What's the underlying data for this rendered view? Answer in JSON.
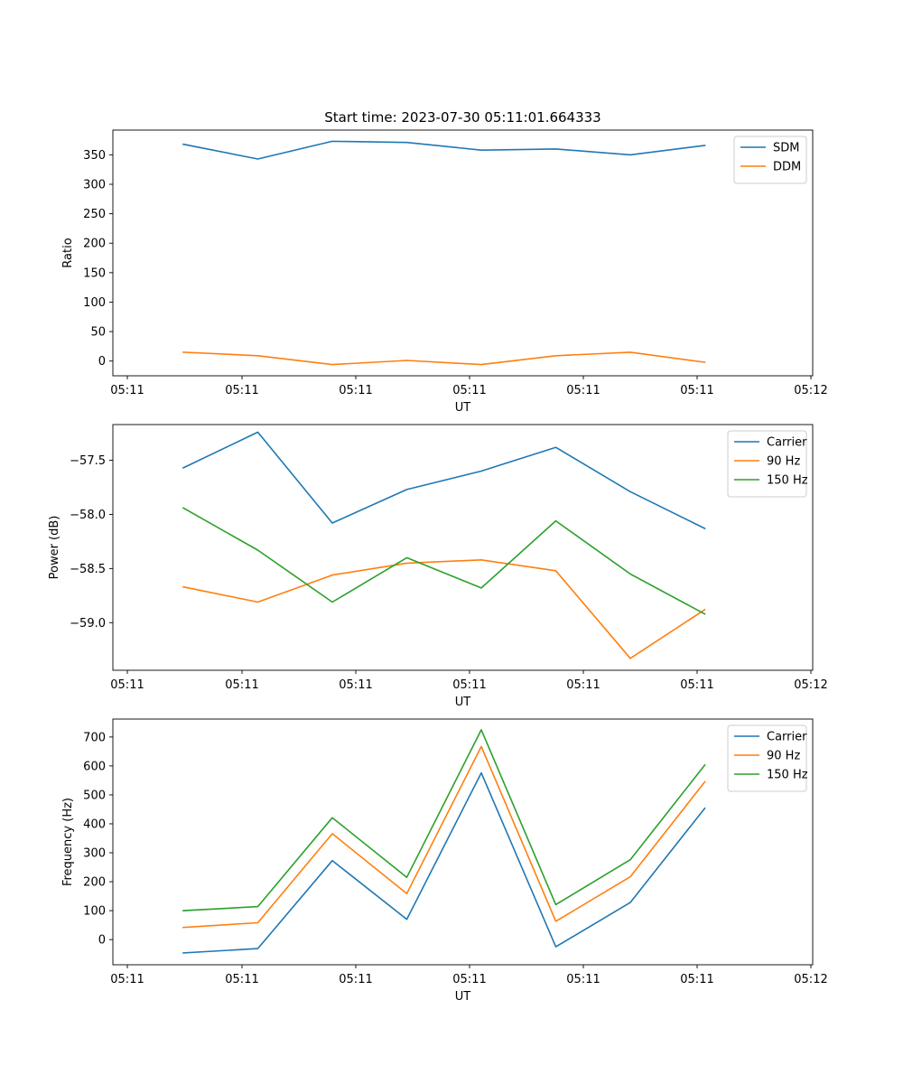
{
  "chart_data": [
    {
      "type": "line",
      "title": "Start time: 2023-07-30 05:11:01.664333",
      "xlabel": "UT",
      "ylabel": "Ratio",
      "x_tick_labels": [
        "05:11",
        "05:11",
        "05:11",
        "05:11",
        "05:11",
        "05:11",
        "05:12"
      ],
      "y_ticks": [
        0,
        50,
        100,
        150,
        200,
        250,
        300,
        350
      ],
      "ylim": [
        -25,
        392
      ],
      "legend_loc": "upper right",
      "series": [
        {
          "name": "SDM",
          "color": "#1f77b4",
          "values": [
            368,
            343,
            373,
            371,
            358,
            360,
            350,
            366
          ]
        },
        {
          "name": "DDM",
          "color": "#ff7f0e",
          "values": [
            15,
            9,
            -6,
            1,
            -6,
            9,
            15,
            -2
          ]
        }
      ]
    },
    {
      "type": "line",
      "title": "",
      "xlabel": "UT",
      "ylabel": "Power (dB)",
      "x_tick_labels": [
        "05:11",
        "05:11",
        "05:11",
        "05:11",
        "05:11",
        "05:11",
        "05:12"
      ],
      "y_ticks": [
        -59.0,
        -58.5,
        -58.0,
        -57.5
      ],
      "y_tick_labels": [
        "−59.0",
        "−58.5",
        "−58.0",
        "−57.5"
      ],
      "ylim": [
        -59.44,
        -57.17
      ],
      "legend_loc": "upper right",
      "series": [
        {
          "name": "Carrier",
          "color": "#1f77b4",
          "values": [
            -57.57,
            -57.24,
            -58.08,
            -57.77,
            -57.6,
            -57.38,
            -57.79,
            -58.13
          ]
        },
        {
          "name": "90 Hz",
          "color": "#ff7f0e",
          "values": [
            -58.67,
            -58.81,
            -58.56,
            -58.45,
            -58.42,
            -58.52,
            -59.33,
            -58.88
          ]
        },
        {
          "name": "150 Hz",
          "color": "#2ca02c",
          "values": [
            -57.94,
            -58.33,
            -58.81,
            -58.4,
            -58.68,
            -58.06,
            -58.55,
            -58.92
          ]
        }
      ]
    },
    {
      "type": "line",
      "title": "",
      "xlabel": "UT",
      "ylabel": "Frequency (Hz)",
      "x_tick_labels": [
        "05:11",
        "05:11",
        "05:11",
        "05:11",
        "05:11",
        "05:11",
        "05:12"
      ],
      "y_ticks": [
        0,
        100,
        200,
        300,
        400,
        500,
        600,
        700
      ],
      "y_tick_labels": [
        "0",
        "100",
        "200",
        "300",
        "400",
        "500",
        "600",
        "700"
      ],
      "ylim": [
        -87,
        762
      ],
      "legend_loc": "upper right",
      "series": [
        {
          "name": "Carrier",
          "color": "#1f77b4",
          "values": [
            -46,
            -31,
            273,
            70,
            576,
            -25,
            128,
            454
          ]
        },
        {
          "name": "90 Hz",
          "color": "#ff7f0e",
          "values": [
            42,
            58,
            366,
            159,
            667,
            63,
            217,
            545
          ]
        },
        {
          "name": "150 Hz",
          "color": "#2ca02c",
          "values": [
            100,
            114,
            421,
            215,
            725,
            121,
            276,
            603
          ]
        }
      ]
    }
  ]
}
